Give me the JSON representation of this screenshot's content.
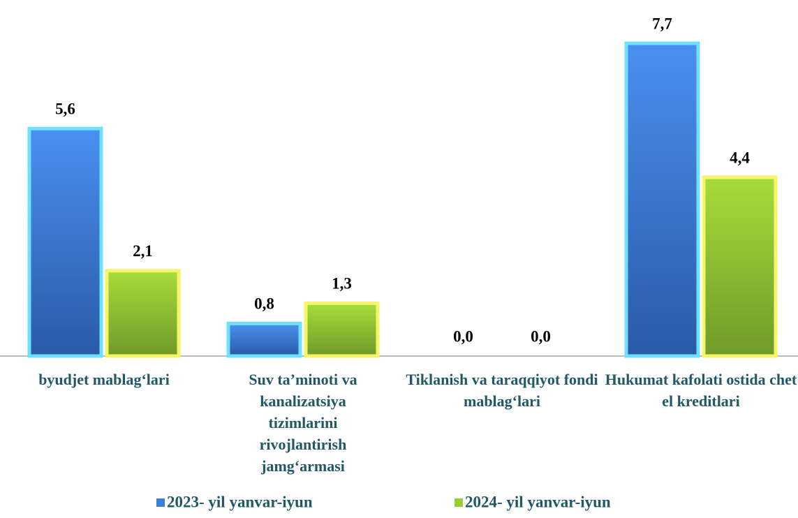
{
  "chart_data": {
    "type": "bar",
    "categories": [
      "byudjet mablag‘lari",
      "Suv ta’minoti va kanalizatsiya tizimlarini rivojlantirish jamg‘armasi",
      "Tiklanish va taraqqiyot fondi mablag‘lari",
      "Hukumat kafolati ostida chet el kreditlari"
    ],
    "series": [
      {
        "name": "2023- yil yanvar-iyun",
        "color": "#3b7fd9",
        "values": [
          5.6,
          0.8,
          0.0,
          7.7
        ],
        "value_labels": [
          "5,6",
          "0,8",
          "0,0",
          "7,7"
        ]
      },
      {
        "name": "2024- yil yanvar-iyun",
        "color": "#9acd32",
        "values": [
          2.1,
          1.3,
          0.0,
          4.4
        ],
        "value_labels": [
          "2,1",
          "1,3",
          "0,0",
          "4,4"
        ]
      }
    ],
    "legend": "bottom"
  }
}
